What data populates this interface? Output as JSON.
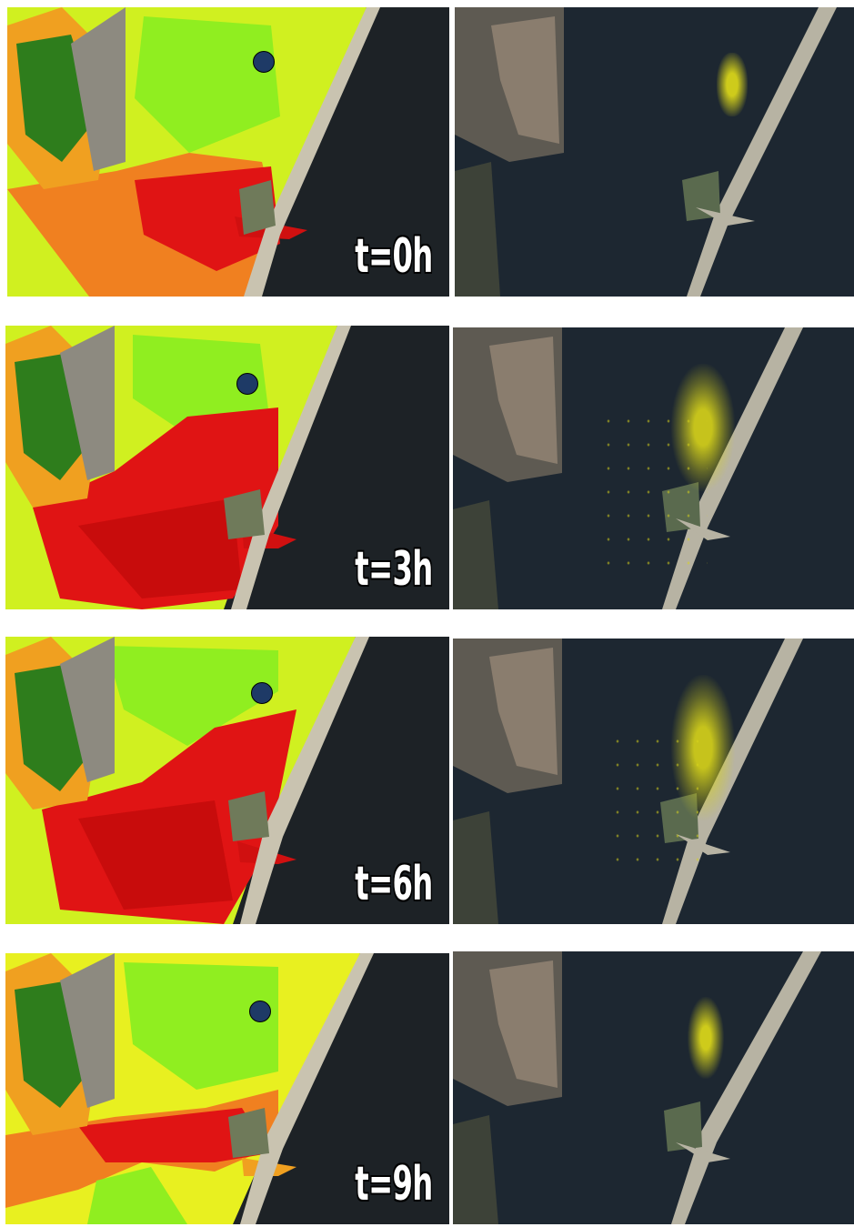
{
  "rows": [
    {
      "time_label": "t=0h",
      "marker_visible": true
    },
    {
      "time_label": "t=3h",
      "marker_visible": true
    },
    {
      "time_label": "t=6h",
      "marker_visible": true
    },
    {
      "time_label": "t=9h",
      "marker_visible": true
    }
  ],
  "colors": {
    "sea": "#1d2226",
    "sand": "#c9c3b0",
    "land_gray": "#8d8a80",
    "heat_low": "#7ef01a",
    "heat_mid": "#f4f01a",
    "heat_high": "#f0a020",
    "heat_max": "#e01010",
    "vegetation": "#2e7d1c",
    "marker": "#1e3a66",
    "particles": "#d8d41a"
  }
}
